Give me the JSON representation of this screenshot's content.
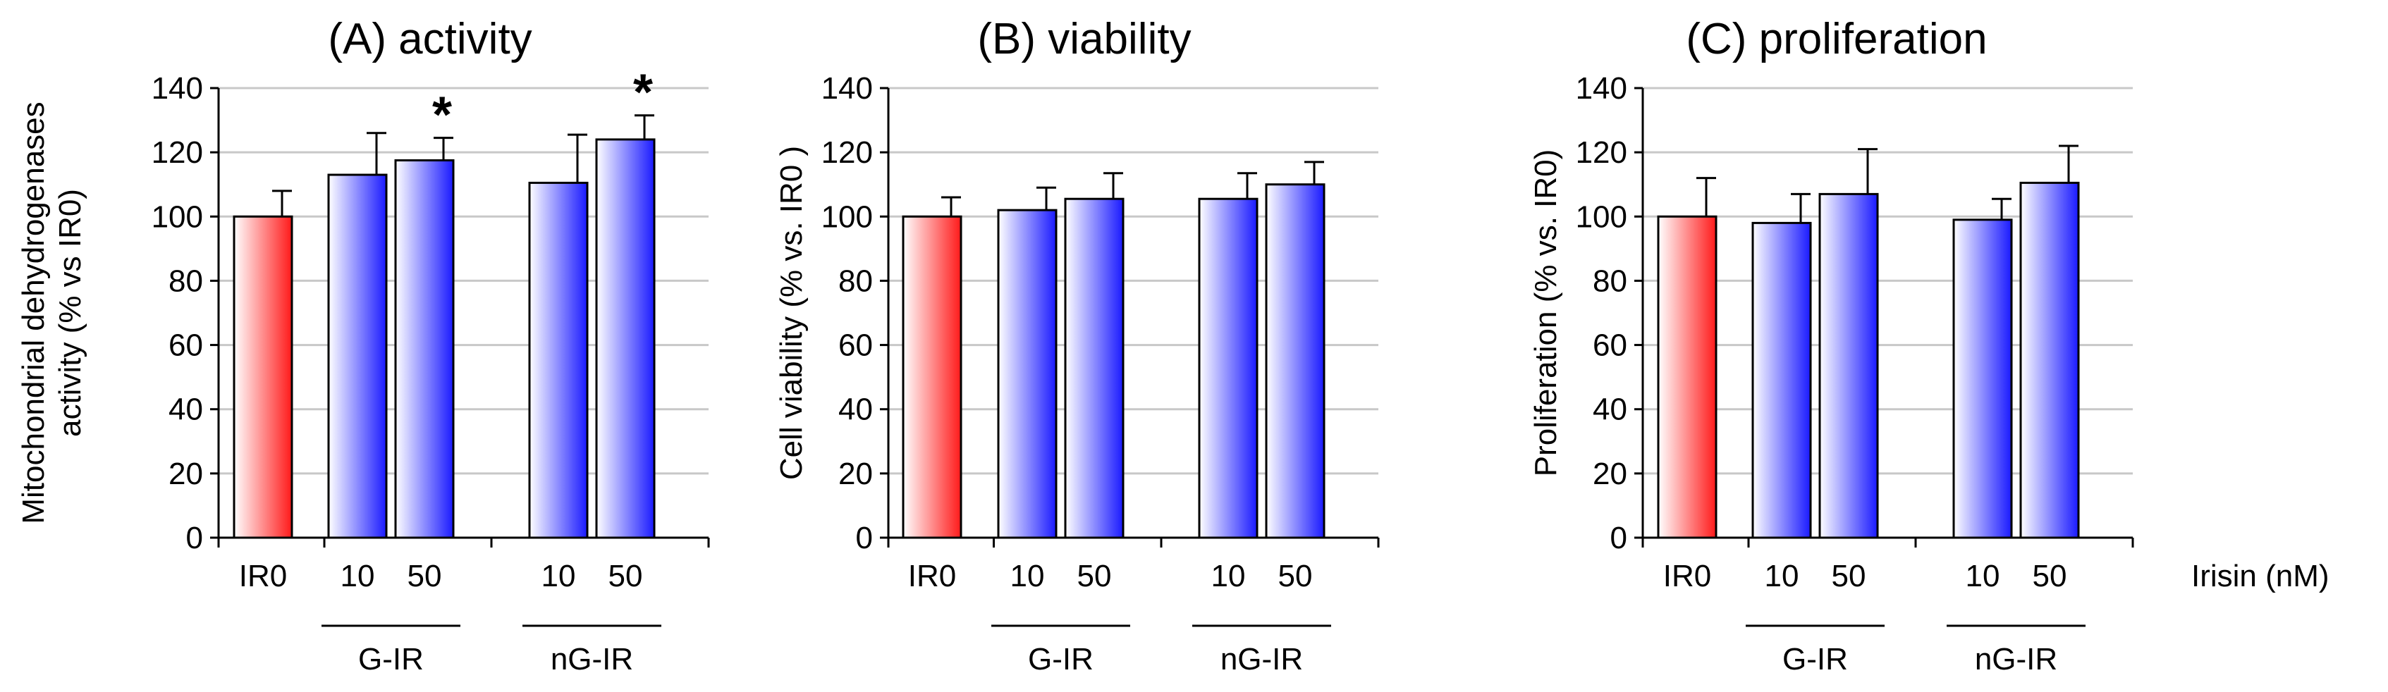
{
  "chart_data": [
    {
      "type": "bar",
      "title": "(A) activity",
      "ylabel_lines": [
        "Mitochondrial dehydrogenases",
        "activity (% vs IR0)"
      ],
      "ylim": [
        0,
        140
      ],
      "yticks": [
        0,
        20,
        40,
        60,
        80,
        100,
        120,
        140
      ],
      "grid": true,
      "categories": [
        "IR0",
        "G-IR 10",
        "G-IR 50",
        "nG-IR 10",
        "nG-IR 50"
      ],
      "category_labels": [
        "IR0",
        "10",
        "50",
        "10",
        "50"
      ],
      "values": [
        100,
        113,
        117.5,
        110.5,
        124
      ],
      "errors": [
        8,
        13,
        7,
        15,
        7.5
      ],
      "significance": [
        "",
        "",
        "*",
        "",
        "*"
      ],
      "groups": [
        {
          "label": "G-IR",
          "members": [
            1,
            2
          ]
        },
        {
          "label": "nG-IR",
          "members": [
            3,
            4
          ]
        }
      ],
      "colors": {
        "control": "#ff1a1a",
        "treated": "#1a1aff"
      }
    },
    {
      "type": "bar",
      "title": "(B) viability",
      "ylabel_lines": [
        "Cell viability  (% vs. IR0 )"
      ],
      "ylim": [
        0,
        140
      ],
      "yticks": [
        0,
        20,
        40,
        60,
        80,
        100,
        120,
        140
      ],
      "grid": true,
      "categories": [
        "IR0",
        "G-IR 10",
        "G-IR 50",
        "nG-IR 10",
        "nG-IR 50"
      ],
      "category_labels": [
        "IR0",
        "10",
        "50",
        "10",
        "50"
      ],
      "values": [
        100,
        102,
        105.5,
        105.5,
        110
      ],
      "errors": [
        6,
        7,
        8,
        8,
        7
      ],
      "significance": [
        "",
        "",
        "",
        "",
        ""
      ],
      "groups": [
        {
          "label": "G-IR",
          "members": [
            1,
            2
          ]
        },
        {
          "label": "nG-IR",
          "members": [
            3,
            4
          ]
        }
      ],
      "colors": {
        "control": "#ff1a1a",
        "treated": "#1a1aff"
      }
    },
    {
      "type": "bar",
      "title": "(C) proliferation",
      "ylabel_lines": [
        "Proliferation  (% vs. IR0)"
      ],
      "ylim": [
        0,
        140
      ],
      "yticks": [
        0,
        20,
        40,
        60,
        80,
        100,
        120,
        140
      ],
      "grid": true,
      "categories": [
        "IR0",
        "G-IR 10",
        "G-IR 50",
        "nG-IR 10",
        "nG-IR 50"
      ],
      "category_labels": [
        "IR0",
        "10",
        "50",
        "10",
        "50"
      ],
      "values": [
        100,
        98,
        107,
        99,
        110.5
      ],
      "errors": [
        12,
        9,
        14,
        6.5,
        11.5
      ],
      "significance": [
        "",
        "",
        "",
        "",
        ""
      ],
      "groups": [
        {
          "label": "G-IR",
          "members": [
            1,
            2
          ]
        },
        {
          "label": "nG-IR",
          "members": [
            3,
            4
          ]
        }
      ],
      "colors": {
        "control": "#ff1a1a",
        "treated": "#1a1aff"
      },
      "unit_label": "Irisin (nM)"
    }
  ]
}
